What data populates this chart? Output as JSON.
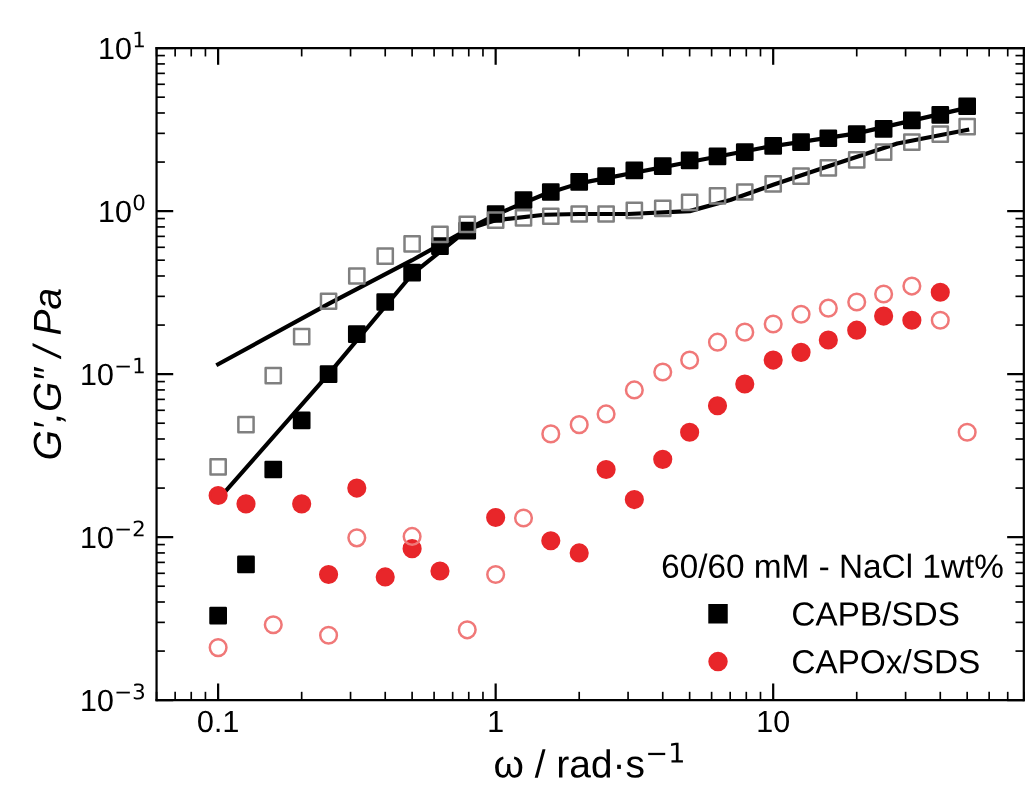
{
  "chart_data": {
    "type": "scatter",
    "xlabel": "ω / rad·s$^{−1}$",
    "ylabel": "G′,G″ / Pa",
    "legend_title": "60/60 mM - NaCl 1wt%",
    "x": [
      0.1,
      0.126,
      0.158,
      0.2,
      0.25,
      0.316,
      0.4,
      0.5,
      0.63,
      0.79,
      1.0,
      1.26,
      1.58,
      2.0,
      2.5,
      3.16,
      4.0,
      5.0,
      6.3,
      7.9,
      10,
      12.6,
      15.8,
      20,
      25,
      31.6,
      40,
      50
    ],
    "log": "xy",
    "xlim": [
      0.06,
      80
    ],
    "ylim": [
      0.001,
      10
    ],
    "xticks": [
      0.1,
      1,
      10
    ],
    "yticks": [
      {
        "value": 0.001,
        "label": "10$^{−3}$"
      },
      {
        "value": 0.01,
        "label": "10$^{−2}$"
      },
      {
        "value": 0.1,
        "label": "10$^{−1}$"
      },
      {
        "value": 1,
        "label": "10$^{0}$"
      },
      {
        "value": 10,
        "label": "10$^{1}$"
      }
    ],
    "grid": false,
    "legend": "bottom right",
    "series": [
      {
        "name": "CAPB/SDS",
        "color": "#000000",
        "marker": "square",
        "values": [
          0.0033,
          0.0068,
          0.026,
          0.052,
          0.1,
          0.176,
          0.277,
          0.42,
          0.61,
          0.76,
          0.96,
          1.17,
          1.31,
          1.51,
          1.64,
          1.78,
          1.89,
          2.05,
          2.17,
          2.3,
          2.51,
          2.65,
          2.8,
          2.97,
          3.2,
          3.6,
          3.9,
          4.4
        ]
      },
      {
        "color": "#808080",
        "marker": "square",
        "values": [
          0.027,
          0.049,
          0.098,
          0.17,
          0.28,
          0.4,
          0.53,
          0.63,
          0.72,
          0.83,
          0.88,
          0.91,
          0.93,
          0.96,
          0.96,
          1.01,
          1.04,
          1.13,
          1.24,
          1.31,
          1.47,
          1.64,
          1.84,
          2.06,
          2.3,
          2.65,
          2.97,
          3.3
        ]
      },
      {
        "name": "CAPOx/SDS",
        "color": "#e8262a",
        "marker": "circle",
        "values": [
          0.018,
          0.016,
          null,
          0.016,
          0.0059,
          0.02,
          0.0057,
          0.0085,
          0.0062,
          null,
          0.0132,
          null,
          0.0095,
          0.008,
          0.026,
          0.017,
          0.03,
          0.044,
          0.064,
          0.087,
          0.122,
          0.136,
          0.162,
          0.186,
          0.227,
          0.214,
          0.318,
          null
        ]
      },
      {
        "color": "#f07878",
        "marker": "circle",
        "values": [
          0.0021,
          null,
          0.0029,
          null,
          0.0025,
          0.0099,
          null,
          0.0101,
          null,
          0.0027,
          0.0059,
          0.0131,
          0.043,
          0.049,
          0.057,
          0.08,
          0.103,
          0.122,
          0.157,
          0.181,
          0.203,
          0.233,
          0.254,
          0.277,
          0.31,
          0.347,
          0.214,
          0.044
        ]
      },
      {
        "type": "line",
        "color": "#000000",
        "x": [
          0.1,
          0.25,
          0.5,
          0.8,
          1.0,
          1.5,
          2.0,
          5.0,
          9.1,
          20,
          50
        ],
        "values": [
          0.017,
          0.1,
          0.41,
          0.78,
          0.95,
          1.27,
          1.48,
          2.0,
          2.44,
          3.0,
          4.3
        ]
      },
      {
        "type": "line",
        "color": "#000000",
        "x": [
          0.1,
          0.25,
          0.5,
          0.8,
          1.0,
          1.5,
          2.0,
          3.0,
          5.0,
          7.0,
          10,
          16,
          28,
          50
        ],
        "values": [
          0.115,
          0.27,
          0.5,
          0.78,
          0.88,
          0.95,
          0.96,
          0.96,
          1.0,
          1.17,
          1.45,
          1.9,
          2.6,
          3.15
        ]
      }
    ]
  }
}
